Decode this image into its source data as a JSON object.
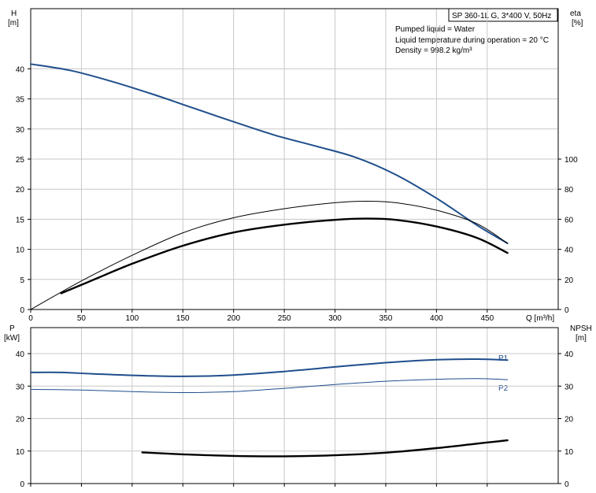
{
  "chart_data": [
    {
      "id": "top",
      "type": "line",
      "header_box": "SP 360-1L G, 3*400 V, 50Hz",
      "info_lines": [
        "Pumped liquid = Water",
        "Liquid temperature during operation = 20 °C",
        "Density = 998.2 kg/m³"
      ],
      "xlabel": "Q [m³/h]",
      "xlim": [
        0,
        520
      ],
      "x_ticks": [
        0,
        50,
        100,
        150,
        200,
        250,
        300,
        350,
        400,
        450
      ],
      "left_axis": {
        "label_line1": "H",
        "label_line2": "[m]",
        "lim": [
          0,
          50
        ],
        "ticks": [
          0,
          5,
          10,
          15,
          20,
          25,
          30,
          35,
          40
        ]
      },
      "right_axis": {
        "label_line1": "eta",
        "label_line2": "[%]",
        "lim": [
          0,
          200
        ],
        "ticks": [
          0,
          20,
          40,
          60,
          80,
          100
        ]
      },
      "grid": true,
      "series": [
        {
          "axis": "left",
          "color": "#1f4e8c",
          "width": 2,
          "x": [
            0,
            40,
            80,
            120,
            160,
            200,
            240,
            280,
            320,
            360,
            400,
            440,
            470
          ],
          "y": [
            40.8,
            39.7,
            37.9,
            35.8,
            33.5,
            31.2,
            29.0,
            27.2,
            25.3,
            22.4,
            18.5,
            14.0,
            11.0
          ]
        },
        {
          "axis": "right",
          "color": "#000000",
          "width": 1,
          "x": [
            0,
            50,
            100,
            150,
            200,
            250,
            300,
            330,
            360,
            400,
            440,
            470
          ],
          "y": [
            0,
            19,
            36,
            51,
            61,
            67,
            71,
            72,
            71,
            66,
            57,
            44
          ]
        },
        {
          "axis": "left",
          "color": "#000000",
          "width": 2.4,
          "x": [
            30,
            60,
            100,
            150,
            200,
            250,
            300,
            330,
            360,
            400,
            440,
            470
          ],
          "y": [
            2.7,
            4.8,
            7.6,
            10.6,
            12.8,
            14.1,
            14.9,
            15.1,
            14.9,
            13.8,
            11.9,
            9.4
          ]
        }
      ]
    },
    {
      "id": "bottom",
      "type": "line",
      "xlim": [
        0,
        520
      ],
      "x_ticks": [
        0,
        50,
        100,
        150,
        200,
        250,
        300,
        350,
        400,
        450
      ],
      "left_axis": {
        "label_line1": "P",
        "label_line2": "[kW]",
        "lim": [
          0,
          48
        ],
        "ticks": [
          0,
          10,
          20,
          30,
          40
        ]
      },
      "right_axis": {
        "label_line1": "NPSH",
        "label_line2": "[m]",
        "lim": [
          0,
          48
        ],
        "ticks": [
          0,
          10,
          20,
          30,
          40
        ]
      },
      "grid": true,
      "series": [
        {
          "name": "P1",
          "axis": "left",
          "color": "#1f4e8c",
          "width": 2,
          "x": [
            0,
            30,
            60,
            100,
            150,
            200,
            250,
            300,
            350,
            400,
            440,
            470
          ],
          "y": [
            34.2,
            34.2,
            33.8,
            33.3,
            33.0,
            33.4,
            34.5,
            35.9,
            37.2,
            38.1,
            38.3,
            38.0
          ]
        },
        {
          "name": "P2",
          "axis": "left",
          "color": "#1f4e8c",
          "width": 1,
          "x": [
            0,
            50,
            100,
            150,
            200,
            250,
            300,
            350,
            400,
            440,
            470
          ],
          "y": [
            29.0,
            28.8,
            28.3,
            28.0,
            28.3,
            29.3,
            30.5,
            31.5,
            32.1,
            32.3,
            32.0
          ]
        },
        {
          "axis": "right",
          "color": "#000000",
          "width": 2.4,
          "x": [
            110,
            150,
            200,
            250,
            300,
            350,
            400,
            440,
            470
          ],
          "y": [
            9.6,
            9.0,
            8.5,
            8.4,
            8.7,
            9.5,
            10.9,
            12.3,
            13.3
          ]
        }
      ]
    }
  ]
}
